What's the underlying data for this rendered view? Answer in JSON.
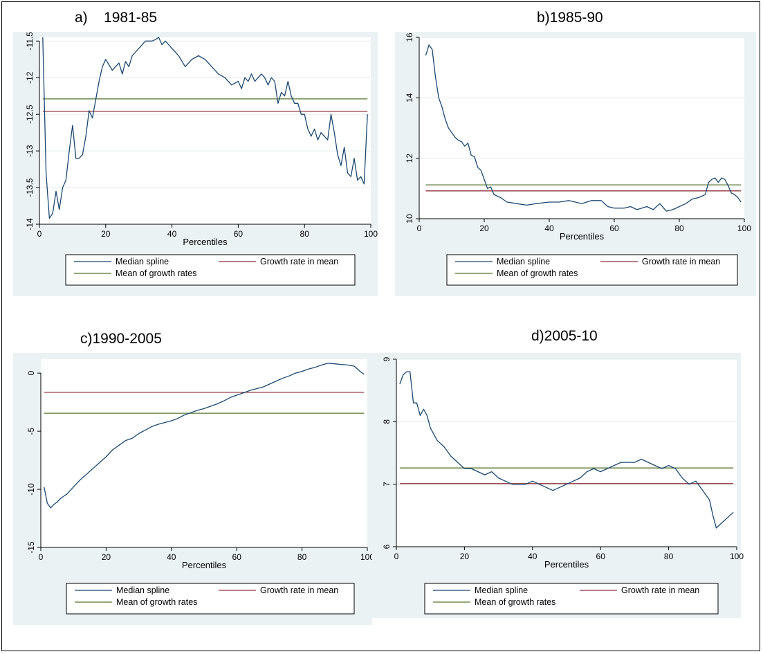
{
  "colors": {
    "panel_bg": "#eaf2f3",
    "plot_bg": "#ffffff",
    "grid": "#e3eaea",
    "median_spline": "#1a476f",
    "growth_rate_in_mean": "#90353b",
    "mean_of_growth_rates": "#55752f"
  },
  "chart_data": [
    {
      "id": "a",
      "type": "line",
      "title": "a)    1981-85",
      "xlabel": "Percentiles",
      "ylabel": "",
      "xlim": [
        0,
        100
      ],
      "ylim": [
        -14,
        -11.45
      ],
      "xticks": [
        0,
        20,
        40,
        60,
        80,
        100
      ],
      "yticks": [
        -14,
        -13.5,
        -13,
        -12.5,
        -12,
        -11.5
      ],
      "ytick_labels": [
        "-14",
        "-13.5",
        "-13",
        "-12.5",
        "-12",
        "-11.5"
      ],
      "grid": true,
      "legend": {
        "placement": "bottom",
        "entries": [
          "Median spline",
          "Growth rate in mean",
          "Mean of growth rates"
        ]
      },
      "series": [
        {
          "name": "Median spline",
          "x": [
            1,
            2,
            3,
            4,
            5,
            6,
            7,
            8,
            9,
            10,
            11,
            12,
            13,
            14,
            15,
            16,
            17,
            18,
            19,
            20,
            22,
            24,
            25,
            26,
            27,
            28,
            30,
            32,
            34,
            35,
            36,
            37,
            38,
            39,
            40,
            42,
            44,
            46,
            48,
            50,
            52,
            54,
            56,
            58,
            60,
            61,
            62,
            63,
            64,
            65,
            66,
            67,
            68,
            69,
            70,
            71,
            72,
            73,
            74,
            75,
            76,
            77,
            78,
            79,
            80,
            81,
            82,
            83,
            84,
            85,
            86,
            87,
            88,
            89,
            90,
            91,
            92,
            93,
            94,
            95,
            96,
            97,
            98,
            99
          ],
          "y": [
            -11.45,
            -13.3,
            -13.92,
            -13.85,
            -13.55,
            -13.8,
            -13.5,
            -13.4,
            -13,
            -12.65,
            -13.1,
            -13.1,
            -13.05,
            -12.8,
            -12.45,
            -12.55,
            -12.3,
            -12.05,
            -11.85,
            -11.75,
            -11.9,
            -11.8,
            -11.95,
            -11.78,
            -11.85,
            -11.7,
            -11.6,
            -11.5,
            -11.5,
            -11.48,
            -11.45,
            -11.55,
            -11.5,
            -11.55,
            -11.6,
            -11.7,
            -11.85,
            -11.75,
            -11.7,
            -11.75,
            -11.85,
            -11.95,
            -12,
            -12.1,
            -12.05,
            -12.15,
            -12,
            -12.05,
            -11.95,
            -12.05,
            -12,
            -11.95,
            -12,
            -12.1,
            -12,
            -12.05,
            -12.35,
            -12.2,
            -12.25,
            -12.05,
            -12.25,
            -12.35,
            -12.35,
            -12.5,
            -12.5,
            -12.7,
            -12.8,
            -12.7,
            -12.85,
            -12.75,
            -12.8,
            -12.85,
            -12.5,
            -12.75,
            -13.05,
            -13.2,
            -12.95,
            -13.3,
            -13.35,
            -13.1,
            -13.4,
            -13.35,
            -13.45,
            -12.5
          ]
        },
        {
          "name": "Growth rate in mean",
          "x": [
            1,
            99
          ],
          "y": [
            -12.46,
            -12.46
          ]
        },
        {
          "name": "Mean of growth rates",
          "x": [
            1,
            99
          ],
          "y": [
            -12.29,
            -12.29
          ]
        }
      ]
    },
    {
      "id": "b",
      "type": "line",
      "title": "b)1985-90",
      "xlabel": "Percentiles",
      "ylabel": "",
      "xlim": [
        0,
        100
      ],
      "ylim": [
        10,
        16
      ],
      "xticks": [
        0,
        20,
        40,
        60,
        80,
        100
      ],
      "yticks": [
        10,
        12,
        14,
        16
      ],
      "ytick_labels": [
        "10",
        "12",
        "14",
        "16"
      ],
      "grid": true,
      "legend": {
        "placement": "bottom",
        "entries": [
          "Median spline",
          "Growth rate in mean",
          "Mean of growth rates"
        ]
      },
      "series": [
        {
          "name": "Median spline",
          "x": [
            2,
            3,
            4,
            5,
            6,
            7,
            8,
            9,
            10,
            11,
            12,
            13,
            14,
            15,
            16,
            17,
            18,
            19,
            20,
            21,
            22,
            23,
            24,
            25,
            27,
            30,
            33,
            36,
            40,
            43,
            46,
            50,
            53,
            56,
            58,
            60,
            63,
            65,
            67,
            70,
            72,
            74,
            76,
            78,
            80,
            82,
            84,
            86,
            88,
            89,
            90,
            91,
            92,
            93,
            94,
            95,
            96,
            97,
            98,
            99
          ],
          "y": [
            15.4,
            15.75,
            15.6,
            14.7,
            14,
            13.7,
            13.3,
            13,
            12.85,
            12.7,
            12.6,
            12.55,
            12.4,
            12.5,
            12.1,
            12.05,
            11.7,
            11.6,
            11.3,
            11,
            11.05,
            10.8,
            10.75,
            10.7,
            10.55,
            10.5,
            10.45,
            10.5,
            10.55,
            10.55,
            10.6,
            10.5,
            10.6,
            10.6,
            10.4,
            10.35,
            10.35,
            10.4,
            10.3,
            10.4,
            10.3,
            10.5,
            10.25,
            10.3,
            10.4,
            10.5,
            10.65,
            10.7,
            10.8,
            11.2,
            11.3,
            11.35,
            11.2,
            11.35,
            11.3,
            11.1,
            10.85,
            10.8,
            10.7,
            10.55
          ]
        },
        {
          "name": "Growth rate in mean",
          "x": [
            2,
            99
          ],
          "y": [
            10.92,
            10.92
          ]
        },
        {
          "name": "Mean of growth rates",
          "x": [
            2,
            99
          ],
          "y": [
            11.12,
            11.12
          ]
        }
      ]
    },
    {
      "id": "c",
      "type": "line",
      "title": "c)1990-2005",
      "xlabel": "Percentiles",
      "ylabel": "",
      "xlim": [
        0,
        100
      ],
      "ylim": [
        -15,
        1.2
      ],
      "xticks": [
        0,
        20,
        40,
        60,
        80,
        100
      ],
      "yticks": [
        -15,
        -10,
        -5,
        0
      ],
      "ytick_labels": [
        "-15",
        "-10",
        "-5",
        "0"
      ],
      "grid": false,
      "legend": {
        "placement": "bottom",
        "entries": [
          "Median spline",
          "Growth rate in mean",
          "Mean of growth rates"
        ]
      },
      "series": [
        {
          "name": "Median spline",
          "x": [
            1,
            2,
            3,
            4,
            5,
            6,
            7,
            8,
            9,
            10,
            12,
            14,
            16,
            18,
            20,
            22,
            24,
            26,
            28,
            30,
            32,
            34,
            36,
            38,
            40,
            42,
            44,
            46,
            48,
            50,
            52,
            54,
            56,
            58,
            60,
            62,
            64,
            66,
            68,
            70,
            72,
            74,
            76,
            78,
            80,
            82,
            84,
            86,
            88,
            90,
            92,
            94,
            96,
            98,
            99
          ],
          "y": [
            -9.8,
            -11.2,
            -11.6,
            -11.3,
            -11.1,
            -10.8,
            -10.6,
            -10.4,
            -10.1,
            -9.8,
            -9.2,
            -8.7,
            -8.2,
            -7.7,
            -7.2,
            -6.6,
            -6.2,
            -5.8,
            -5.6,
            -5.2,
            -4.9,
            -4.6,
            -4.4,
            -4.25,
            -4.1,
            -3.9,
            -3.6,
            -3.4,
            -3.2,
            -3.05,
            -2.85,
            -2.65,
            -2.4,
            -2.1,
            -1.9,
            -1.7,
            -1.5,
            -1.35,
            -1.2,
            -0.95,
            -0.7,
            -0.45,
            -0.25,
            0,
            0.15,
            0.35,
            0.5,
            0.7,
            0.85,
            0.8,
            0.75,
            0.7,
            0.6,
            0.1,
            -0.1
          ]
        },
        {
          "name": "Growth rate in mean",
          "x": [
            1,
            99
          ],
          "y": [
            -1.65,
            -1.65
          ]
        },
        {
          "name": "Mean of growth rates",
          "x": [
            1,
            99
          ],
          "y": [
            -3.45,
            -3.45
          ]
        }
      ]
    },
    {
      "id": "d",
      "type": "line",
      "title": "d)2005-10",
      "xlabel": "Percentiles",
      "ylabel": "",
      "xlim": [
        0,
        100
      ],
      "ylim": [
        6,
        9
      ],
      "xticks": [
        0,
        20,
        40,
        60,
        80,
        100
      ],
      "yticks": [
        6,
        7,
        8,
        9
      ],
      "ytick_labels": [
        "6",
        "7",
        "8",
        "9"
      ],
      "grid": true,
      "legend": {
        "placement": "bottom",
        "entries": [
          "Median spline",
          "Growth rate in mean",
          "Mean of growth rates"
        ]
      },
      "series": [
        {
          "name": "Median spline",
          "x": [
            1,
            2,
            3,
            4,
            5,
            6,
            7,
            8,
            9,
            10,
            12,
            14,
            16,
            18,
            20,
            22,
            24,
            26,
            28,
            30,
            32,
            34,
            36,
            38,
            40,
            42,
            44,
            46,
            48,
            50,
            52,
            54,
            56,
            58,
            60,
            62,
            64,
            66,
            68,
            70,
            72,
            74,
            76,
            78,
            80,
            82,
            84,
            86,
            88,
            90,
            92,
            93,
            94,
            95,
            96,
            97,
            98,
            99
          ],
          "y": [
            8.6,
            8.75,
            8.8,
            8.8,
            8.3,
            8.3,
            8.1,
            8.2,
            8.1,
            7.9,
            7.7,
            7.6,
            7.45,
            7.35,
            7.25,
            7.25,
            7.2,
            7.15,
            7.2,
            7.1,
            7.05,
            7,
            7,
            7,
            7.05,
            7,
            6.95,
            6.9,
            6.95,
            7,
            7.05,
            7.1,
            7.2,
            7.25,
            7.2,
            7.25,
            7.3,
            7.35,
            7.35,
            7.35,
            7.4,
            7.35,
            7.3,
            7.25,
            7.3,
            7.25,
            7.1,
            7,
            7.05,
            6.9,
            6.75,
            6.5,
            6.3,
            6.35,
            6.4,
            6.45,
            6.5,
            6.55
          ]
        },
        {
          "name": "Growth rate in mean",
          "x": [
            1,
            99
          ],
          "y": [
            7.01,
            7.01
          ]
        },
        {
          "name": "Mean of growth rates",
          "x": [
            1,
            99
          ],
          "y": [
            7.26,
            7.26
          ]
        }
      ]
    }
  ]
}
